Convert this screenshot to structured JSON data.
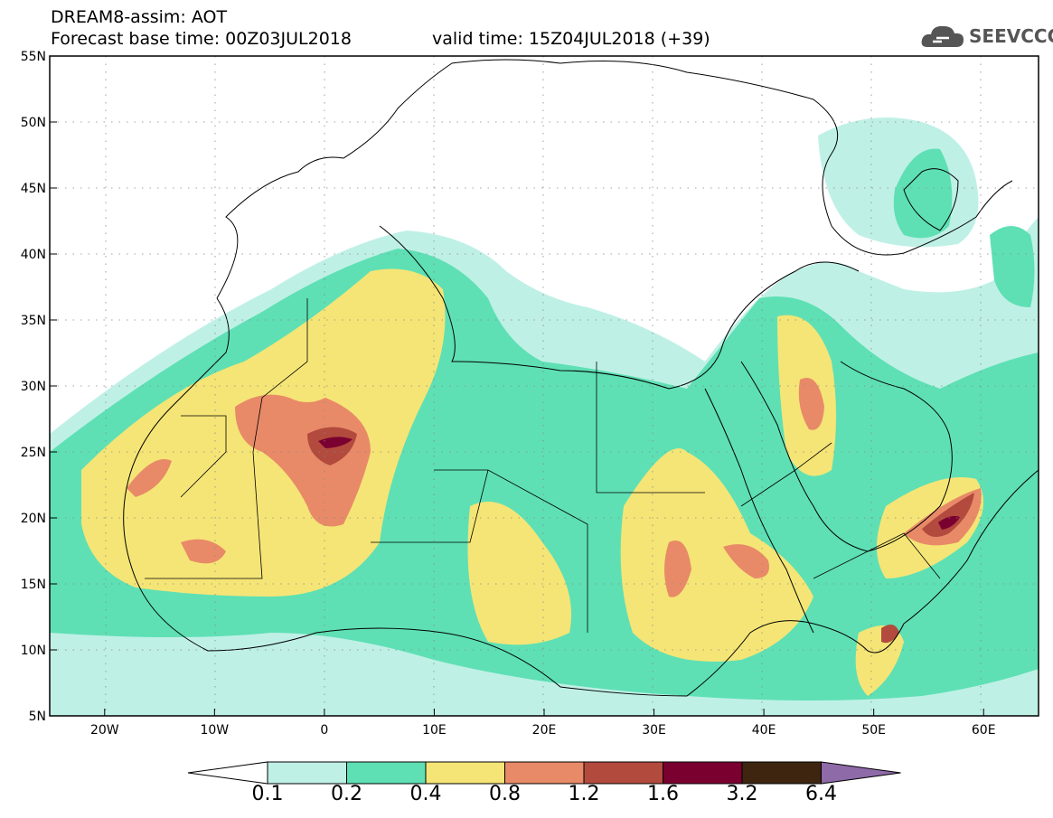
{
  "header": {
    "title": "DREAM8-assim: AOT",
    "base_time": "Forecast base time: 00Z03JUL2018",
    "valid_time": "valid time: 15Z04JUL2018 (+39)"
  },
  "logo": {
    "text": "SEEVCCC",
    "icon": "cloud-icon"
  },
  "map": {
    "lon_range": [
      -25,
      65
    ],
    "lat_range": [
      5,
      55
    ],
    "x_ticks": [
      "20W",
      "10W",
      "0",
      "10E",
      "20E",
      "30E",
      "40E",
      "50E",
      "60E"
    ],
    "x_tick_values": [
      -20,
      -10,
      0,
      10,
      20,
      30,
      40,
      50,
      60
    ],
    "y_ticks": [
      "55N",
      "50N",
      "45N",
      "40N",
      "35N",
      "30N",
      "25N",
      "20N",
      "15N",
      "10N",
      "5N"
    ],
    "y_tick_values": [
      55,
      50,
      45,
      40,
      35,
      30,
      25,
      20,
      15,
      10,
      5
    ],
    "grid": true
  },
  "colorbar": {
    "labels": [
      "0.1",
      "0.2",
      "0.4",
      "0.8",
      "1.2",
      "1.6",
      "3.2",
      "6.4"
    ],
    "colors": [
      "#ffffff",
      "#bff0e6",
      "#5ee0b4",
      "#f5e576",
      "#e88a68",
      "#b34a3e",
      "#7a0030",
      "#3d2510",
      "#8e6aa8"
    ]
  },
  "colors": {
    "c01": "#bff0e6",
    "c02": "#5ee0b4",
    "c04": "#f5e576",
    "c08": "#e88a68",
    "c12": "#b34a3e",
    "c16": "#7a0030",
    "c32": "#3d2510",
    "c64": "#8e6aa8"
  }
}
